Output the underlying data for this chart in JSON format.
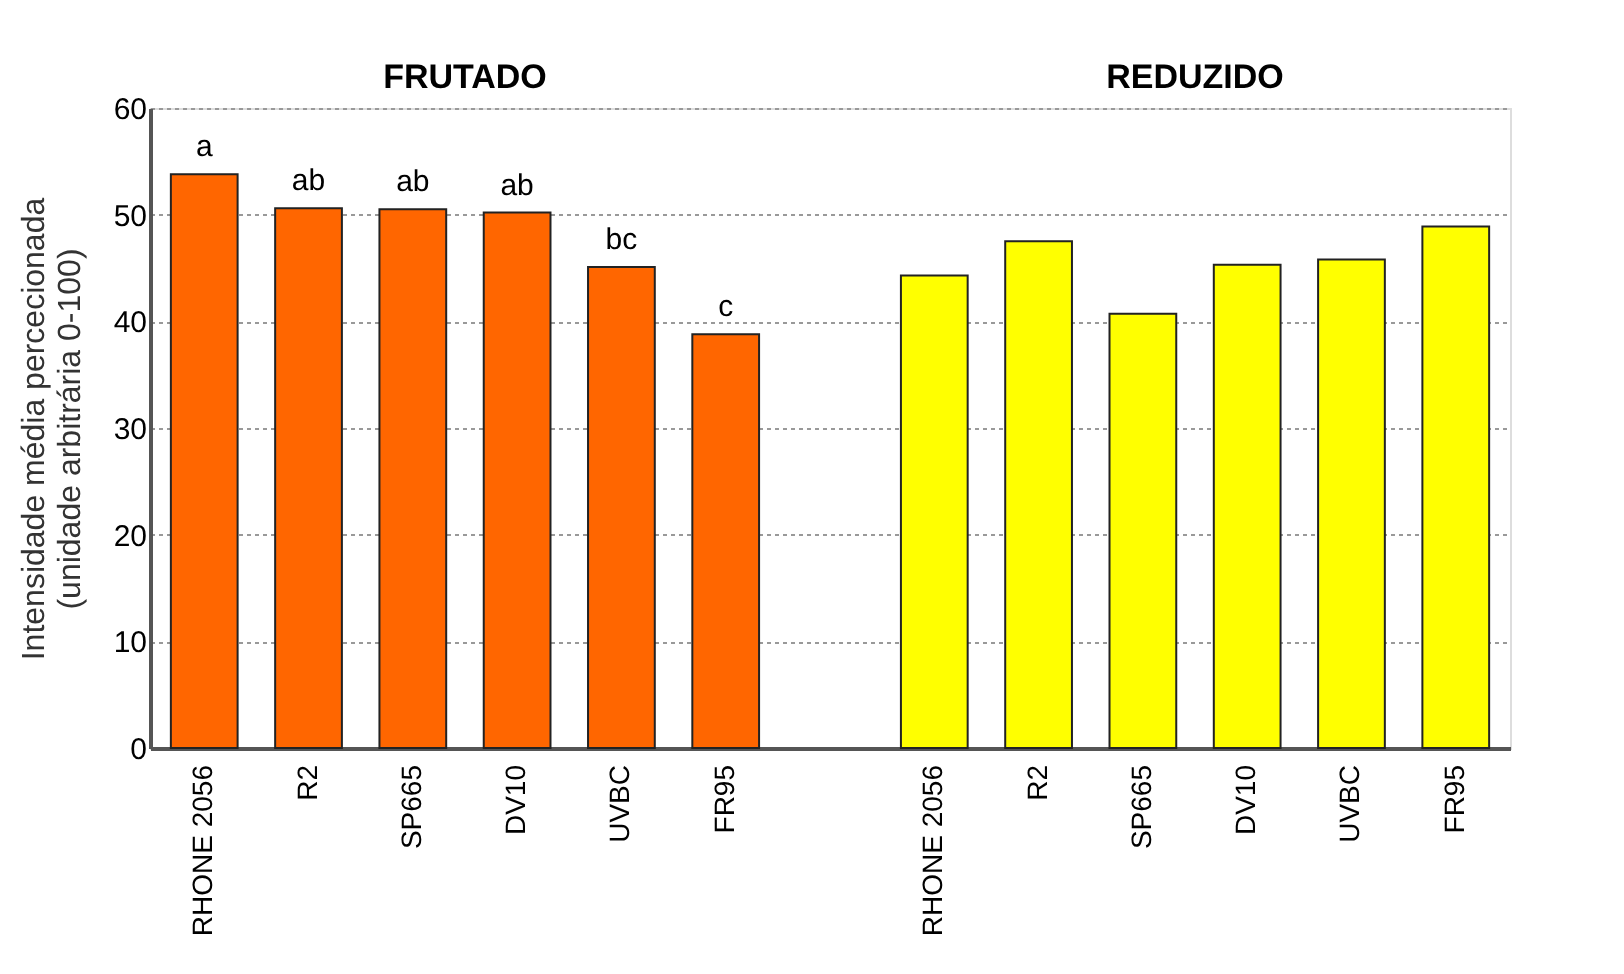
{
  "chart_data": {
    "type": "bar",
    "ylabel": "Intensidade  média percecionada\n(unidade arbitrária 0-100)",
    "categories": [
      "RHONE 2056",
      "R2",
      "SP665",
      "DV10",
      "UVBC",
      "FR95",
      null,
      "RHONE 2056",
      "R2",
      "SP665",
      "DV10",
      "UVBC",
      "FR95"
    ],
    "series": [
      {
        "color": "#ff6600",
        "values": [
          53.8,
          50.6,
          50.5,
          50.2,
          45.1,
          38.8,
          null,
          null,
          null,
          null,
          null,
          null,
          null
        ],
        "value_labels": [
          "a",
          "ab",
          "ab",
          "ab",
          "bc",
          "c",
          null,
          null,
          null,
          null,
          null,
          null,
          null
        ]
      },
      {
        "color": "#ffff00",
        "values": [
          null,
          null,
          null,
          null,
          null,
          null,
          null,
          44.3,
          47.5,
          40.7,
          45.3,
          45.8,
          48.9
        ]
      }
    ],
    "annotations": [
      "FRUTADO",
      "REDUZIDO"
    ],
    "ylim": [
      0,
      60
    ],
    "yticks": [
      0,
      10,
      20,
      30,
      40,
      50,
      60
    ],
    "grid": "y",
    "legend": false
  }
}
